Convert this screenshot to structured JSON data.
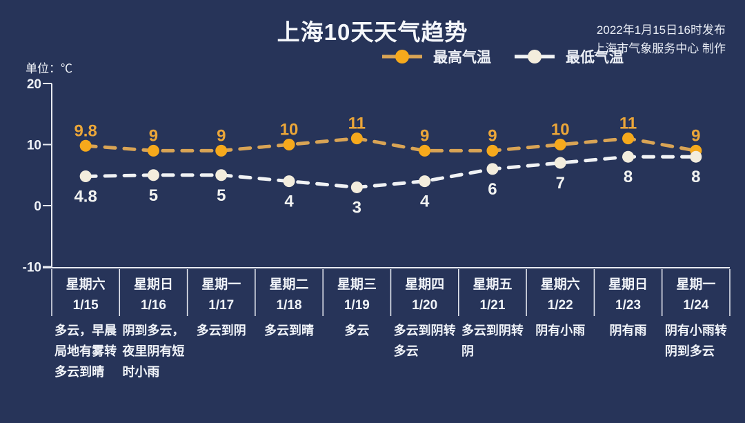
{
  "header": {
    "title": "上海10天天气趋势",
    "publish_line1": "2022年1月15日16时发布",
    "publish_line2": "上海市气象服务中心 制作",
    "unit_label": "单位：℃"
  },
  "legend": [
    {
      "label": "最高气温",
      "dot_color": "#F6A91C",
      "line_color": "#D9A455"
    },
    {
      "label": "最低气温",
      "dot_color": "#F3EDDD",
      "line_color": "#F0F2F4"
    }
  ],
  "chart_data": {
    "type": "line",
    "title": "上海10天天气趋势",
    "unit": "℃",
    "line_style": "dashed",
    "grid": false,
    "legend_position": "top-center",
    "ylim": [
      -10,
      20
    ],
    "y_ticks": [
      20,
      10,
      0,
      -10
    ],
    "categories_week": [
      "星期六",
      "星期日",
      "星期一",
      "星期二",
      "星期三",
      "星期四",
      "星期五",
      "星期六",
      "星期日",
      "星期一"
    ],
    "categories_date": [
      "1/15",
      "1/16",
      "1/17",
      "1/18",
      "1/19",
      "1/20",
      "1/21",
      "1/22",
      "1/23",
      "1/24"
    ],
    "series": [
      {
        "name": "最高气温",
        "values": [
          9.8,
          9,
          9,
          10,
          11,
          9,
          9,
          10,
          11,
          9
        ],
        "dot_color": "#F6A91C",
        "line_color": "#D9A455",
        "label_color": "#EBA639"
      },
      {
        "name": "最低气温",
        "values": [
          4.8,
          5,
          5,
          4,
          3,
          4,
          6,
          7,
          8,
          8
        ],
        "dot_color": "#F3EDDD",
        "line_color": "#F0F2F4",
        "label_color": "#F2F3F1"
      }
    ]
  },
  "days": [
    {
      "week": "星期六",
      "date": "1/15",
      "weather": "多云，早晨\n局地有雾转\n多云到晴"
    },
    {
      "week": "星期日",
      "date": "1/16",
      "weather": "阴到多云，\n夜里阴有短\n时小雨"
    },
    {
      "week": "星期一",
      "date": "1/17",
      "weather": "多云到阴"
    },
    {
      "week": "星期二",
      "date": "1/18",
      "weather": "多云到晴"
    },
    {
      "week": "星期三",
      "date": "1/19",
      "weather": "多云"
    },
    {
      "week": "星期四",
      "date": "1/20",
      "weather": "多云到阴转\n多云"
    },
    {
      "week": "星期五",
      "date": "1/21",
      "weather": "多云到阴转\n阴"
    },
    {
      "week": "星期六",
      "date": "1/22",
      "weather": "阴有小雨"
    },
    {
      "week": "星期日",
      "date": "1/23",
      "weather": "阴有雨"
    },
    {
      "week": "星期一",
      "date": "1/24",
      "weather": "阴有小雨转\n阴到多云"
    }
  ],
  "colors": {
    "background": "#273459",
    "axis": "#E8EBF2",
    "text": "#F1F4F9"
  }
}
